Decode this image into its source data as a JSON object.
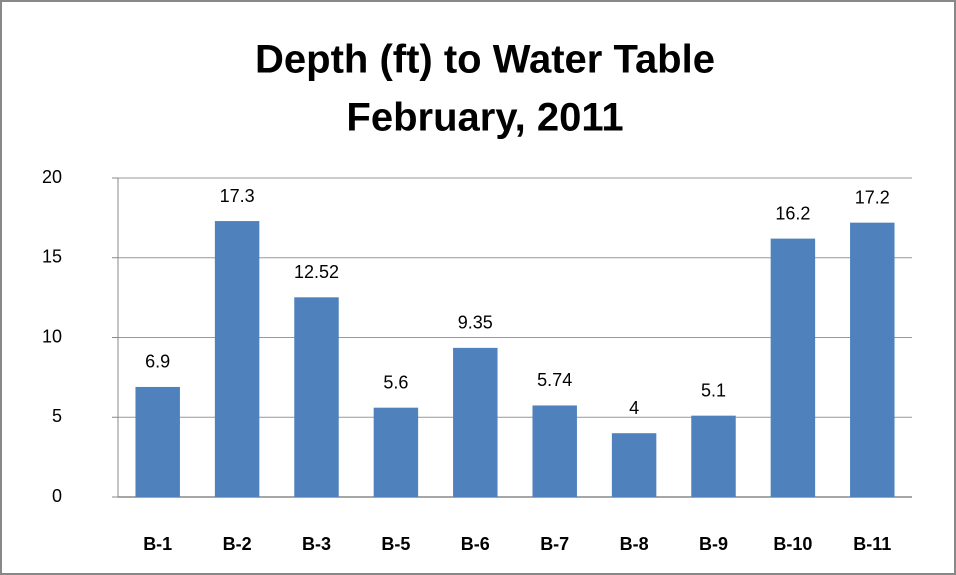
{
  "chart_data": {
    "type": "bar",
    "title": [
      "Depth (ft) to Water Table",
      "February, 2011"
    ],
    "categories": [
      "B-1",
      "B-2",
      "B-3",
      "B-5",
      "B-6",
      "B-7",
      "B-8",
      "B-9",
      "B-10",
      "B-11"
    ],
    "values": [
      6.9,
      17.3,
      12.52,
      5.6,
      9.35,
      5.74,
      4,
      5.1,
      16.2,
      17.2
    ],
    "color": "#4f81bd",
    "ylim": [
      0,
      20
    ],
    "yticks": [
      0,
      5,
      10,
      15,
      20
    ],
    "grid": true
  }
}
